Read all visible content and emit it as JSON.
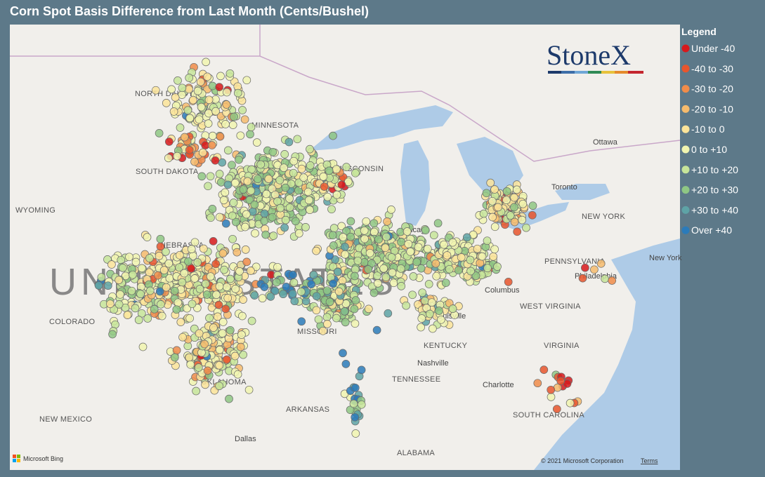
{
  "header": {
    "title": "Corn Spot Basis Difference from Last Month (Cents/Bushel)"
  },
  "legend": {
    "title": "Legend",
    "items": [
      {
        "label": "Under -40",
        "color": "#d7191c"
      },
      {
        "label": "-40 to -30",
        "color": "#e8552d"
      },
      {
        "label": "-30 to -20",
        "color": "#f08c4a"
      },
      {
        "label": "-20 to -10",
        "color": "#f6bb6d"
      },
      {
        "label": "-10 to 0",
        "color": "#fbe49a"
      },
      {
        "label": "0 to +10",
        "color": "#f1f5b0"
      },
      {
        "label": "+10 to +20",
        "color": "#c7e59a"
      },
      {
        "label": "+20 to +30",
        "color": "#8fc784"
      },
      {
        "label": "+30 to +40",
        "color": "#5ea3a6"
      },
      {
        "label": "Over +40",
        "color": "#2b7bba"
      }
    ]
  },
  "logo": "StoneX",
  "map_labels": [
    "NORTH DAKOTA",
    "MINNESOTA",
    "SOUTH DAKOTA",
    "WISCONSIN",
    "WYOMING",
    "NEBRASKA",
    "UNITED STATES",
    "COLORADO",
    "MISSOURI",
    "KENTUCKY",
    "TENNESSEE",
    "OKLAHOMA",
    "ARKANSAS",
    "NEW MEXICO",
    "ALABAMA",
    "NEW YORK",
    "PENNSYLVANIA",
    "WEST VIRGINIA",
    "VIRGINIA",
    "SOUTH CAROLINA",
    "Chicago",
    "Columbus",
    "Louisville",
    "Nashville",
    "Dallas",
    "Toronto",
    "Ottawa",
    "Charlotte",
    "Philadelphia",
    "New York"
  ],
  "footer": {
    "attribution": "© 2021 Microsoft Corporation",
    "terms": "Terms",
    "brand": "Microsoft Bing"
  }
}
